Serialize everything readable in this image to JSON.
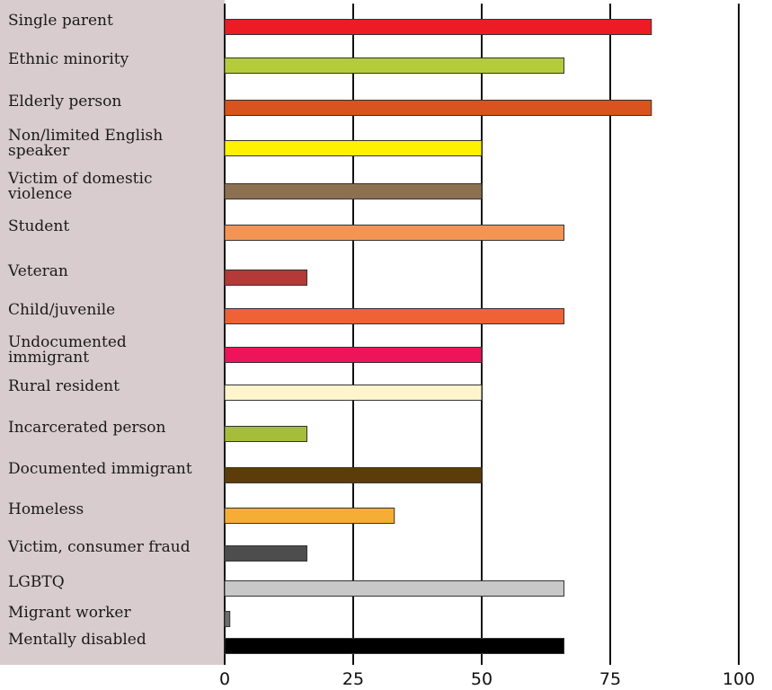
{
  "chart_data": {
    "type": "bar",
    "orientation": "horizontal",
    "categories": [
      "Single parent",
      "Ethnic minority",
      "Elderly person",
      "Non/limited English speaker",
      "Victim of domestic violence",
      "Student",
      "Veteran",
      "Child/juvenile",
      "Undocumented immigrant",
      "Rural resident",
      "Incarcerated person",
      "Documented immigrant",
      "Homeless",
      "Victim, consumer fraud",
      "LGBTQ",
      "Migrant worker",
      "Mentally disabled"
    ],
    "values": [
      83,
      66,
      83,
      50,
      50,
      66,
      16,
      66,
      50,
      50,
      16,
      50,
      33,
      16,
      66,
      1,
      66
    ],
    "colors": [
      "#ed1c24",
      "#b5cc3a",
      "#d9531e",
      "#fff200",
      "#8c7150",
      "#f49454",
      "#b33a37",
      "#ee6236",
      "#ed145b",
      "#fff5cc",
      "#a5bd3a",
      "#5c3d0a",
      "#f6ad35",
      "#4d4d4d",
      "#c8c8c8",
      "#6d6d6d",
      "#000000"
    ],
    "xlim": [
      0,
      100
    ],
    "xticks": [
      "0",
      "25",
      "50",
      "75",
      "100"
    ],
    "grid": true,
    "label_panel_color": "#d8ccce"
  }
}
